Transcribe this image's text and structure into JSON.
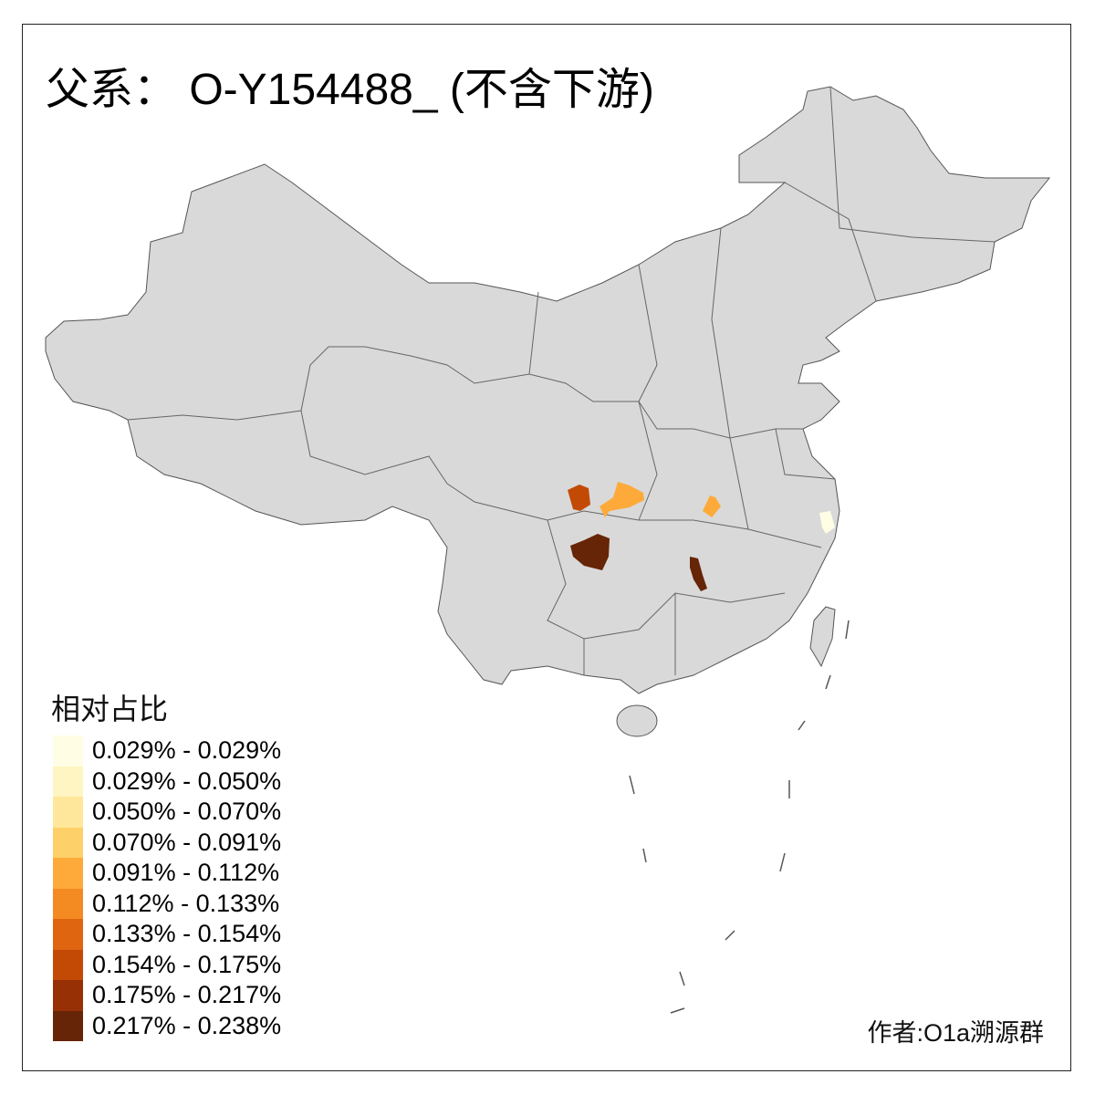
{
  "title": "父系： O-Y154488_ (不含下游)",
  "legend": {
    "title": "相对占比",
    "items": [
      {
        "label": "0.029% - 0.029%",
        "color": "#FFFDE4"
      },
      {
        "label": "0.029% - 0.050%",
        "color": "#FFF5C2"
      },
      {
        "label": "0.050% - 0.070%",
        "color": "#FEE79A"
      },
      {
        "label": "0.070% - 0.091%",
        "color": "#FED06A"
      },
      {
        "label": "0.091% - 0.112%",
        "color": "#FDAA3A"
      },
      {
        "label": "0.112% - 0.133%",
        "color": "#F48A22"
      },
      {
        "label": "0.133% - 0.154%",
        "color": "#E06511"
      },
      {
        "label": "0.154% - 0.175%",
        "color": "#C34A05"
      },
      {
        "label": "0.175% - 0.217%",
        "color": "#983006"
      },
      {
        "label": "0.217% - 0.238%",
        "color": "#662506"
      }
    ]
  },
  "map": {
    "base_color": "#D9D9D9",
    "border_color": "#555555",
    "highlighted_regions": 6
  },
  "author": "作者:O1a溯源群"
}
